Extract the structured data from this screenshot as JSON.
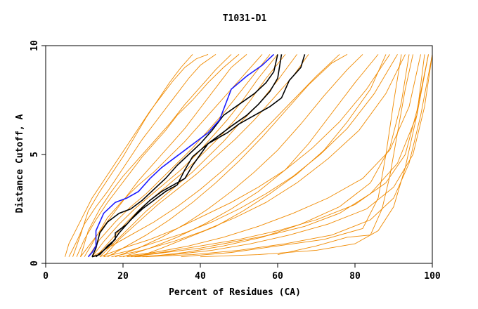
{
  "chart_data": {
    "type": "line",
    "title": "T1031-D1",
    "xlabel": "Percent of Residues (CA)",
    "ylabel": "Distance Cutoff, A",
    "xlim": [
      0,
      100
    ],
    "ylim": [
      0,
      10
    ],
    "xticks": [
      0,
      20,
      40,
      60,
      80,
      100
    ],
    "xtick_labels": [
      "0",
      "20",
      "40",
      "60",
      "80",
      "100"
    ],
    "yticks": [
      0,
      5,
      10
    ],
    "ytick_labels": [
      "0",
      "5",
      "10"
    ],
    "grid": false,
    "legend": "none",
    "colors": {
      "background_models": "#f08a00",
      "black_models": "#000000",
      "highlight_model": "#1a1aff",
      "axes": "#000000"
    },
    "background_series": [
      {
        "x": [
          5,
          6,
          8,
          10,
          12,
          15,
          18,
          21,
          24,
          27,
          30,
          33,
          36,
          39,
          42
        ],
        "y": [
          0.3,
          0.9,
          1.6,
          2.3,
          3.0,
          3.8,
          4.6,
          5.4,
          6.2,
          7.0,
          7.7,
          8.4,
          9.0,
          9.4,
          9.6
        ]
      },
      {
        "x": [
          6,
          8,
          10,
          13,
          16,
          19,
          22,
          25,
          28,
          31,
          34,
          37,
          40,
          44
        ],
        "y": [
          0.3,
          1.0,
          1.8,
          2.6,
          3.3,
          4.1,
          4.9,
          5.7,
          6.4,
          7.1,
          7.8,
          8.5,
          9.1,
          9.6
        ]
      },
      {
        "x": [
          8,
          10,
          13,
          16,
          19,
          22,
          25,
          28,
          31,
          34,
          38,
          42,
          46,
          50
        ],
        "y": [
          0.3,
          1.1,
          2.0,
          2.8,
          3.5,
          4.2,
          4.9,
          5.5,
          6.1,
          6.8,
          7.5,
          8.3,
          9.0,
          9.6
        ]
      },
      {
        "x": [
          9,
          12,
          15,
          18,
          21,
          24,
          27,
          30,
          33,
          36,
          39,
          42,
          45,
          48,
          52
        ],
        "y": [
          0.3,
          1.0,
          1.7,
          2.4,
          3.1,
          3.8,
          4.4,
          5.0,
          5.6,
          6.2,
          6.9,
          7.6,
          8.3,
          9.0,
          9.6
        ]
      },
      {
        "x": [
          10,
          13,
          16,
          20,
          24,
          28,
          32,
          36,
          40,
          44,
          48,
          52,
          56
        ],
        "y": [
          0.3,
          1.2,
          2.1,
          2.9,
          3.6,
          4.2,
          4.9,
          5.6,
          6.4,
          7.2,
          8.0,
          8.8,
          9.6
        ]
      },
      {
        "x": [
          11,
          14,
          18,
          22,
          26,
          30,
          34,
          38,
          42,
          46,
          50,
          54,
          58
        ],
        "y": [
          0.3,
          1.1,
          1.9,
          2.6,
          3.2,
          3.9,
          4.6,
          5.3,
          6.1,
          6.9,
          7.8,
          8.7,
          9.6
        ]
      },
      {
        "x": [
          12,
          15,
          19,
          23,
          27,
          31,
          35,
          39,
          43,
          47,
          51,
          55,
          60
        ],
        "y": [
          0.3,
          1.0,
          1.8,
          2.5,
          3.1,
          3.7,
          4.3,
          5.0,
          5.8,
          6.6,
          7.5,
          8.5,
          9.6
        ]
      },
      {
        "x": [
          13,
          17,
          21,
          25,
          29,
          33,
          37,
          41,
          45,
          49,
          53,
          57,
          62
        ],
        "y": [
          0.3,
          1.1,
          1.9,
          2.6,
          3.2,
          3.8,
          4.4,
          5.1,
          5.8,
          6.6,
          7.5,
          8.5,
          9.6
        ]
      },
      {
        "x": [
          14,
          18,
          22,
          26,
          30,
          34,
          38,
          42,
          46,
          50,
          55,
          60,
          65
        ],
        "y": [
          0.3,
          1.0,
          1.7,
          2.4,
          3.0,
          3.6,
          4.2,
          4.9,
          5.6,
          6.4,
          7.3,
          8.4,
          9.6
        ]
      },
      {
        "x": [
          15,
          19,
          24,
          29,
          34,
          39,
          44,
          49,
          54,
          59,
          64,
          68
        ],
        "y": [
          0.3,
          1.1,
          1.9,
          2.7,
          3.4,
          4.1,
          4.9,
          5.7,
          6.6,
          7.6,
          8.6,
          9.6
        ]
      },
      {
        "x": [
          7,
          9,
          11,
          14,
          17,
          20,
          23,
          26,
          29,
          32,
          35,
          38
        ],
        "y": [
          0.3,
          1.3,
          2.4,
          3.3,
          4.1,
          4.9,
          5.8,
          6.7,
          7.5,
          8.3,
          9.0,
          9.6
        ]
      },
      {
        "x": [
          9,
          11,
          14,
          17,
          20,
          24,
          28,
          32,
          36,
          40,
          44,
          48
        ],
        "y": [
          0.3,
          1.5,
          2.5,
          3.3,
          4.0,
          4.8,
          5.6,
          6.4,
          7.3,
          8.1,
          8.9,
          9.6
        ]
      },
      {
        "x": [
          16,
          21,
          26,
          32,
          38,
          44,
          50,
          56,
          62,
          68,
          74,
          78
        ],
        "y": [
          0.3,
          0.8,
          1.3,
          2.0,
          2.8,
          3.7,
          4.7,
          5.8,
          7.0,
          8.2,
          9.2,
          9.6
        ]
      },
      {
        "x": [
          18,
          24,
          30,
          36,
          42,
          48,
          54,
          60,
          66,
          72,
          78,
          82
        ],
        "y": [
          0.3,
          0.7,
          1.2,
          1.8,
          2.5,
          3.3,
          4.2,
          5.2,
          6.4,
          7.7,
          8.9,
          9.6
        ]
      },
      {
        "x": [
          20,
          27,
          34,
          41,
          48,
          55,
          62,
          68,
          74,
          80,
          86
        ],
        "y": [
          0.3,
          0.7,
          1.2,
          1.8,
          2.5,
          3.3,
          4.3,
          5.5,
          6.9,
          8.3,
          9.6
        ]
      },
      {
        "x": [
          17,
          25,
          33,
          41,
          49,
          57,
          65,
          73,
          81,
          88,
          93
        ],
        "y": [
          0.3,
          0.6,
          1.0,
          1.5,
          2.1,
          2.8,
          3.7,
          4.8,
          6.1,
          7.8,
          9.6
        ]
      },
      {
        "x": [
          19,
          28,
          37,
          46,
          55,
          64,
          73,
          82,
          89,
          94,
          97
        ],
        "y": [
          0.3,
          0.5,
          0.8,
          1.2,
          1.7,
          2.3,
          3.0,
          3.9,
          5.2,
          7.2,
          9.6
        ]
      },
      {
        "x": [
          21,
          30,
          40,
          50,
          60,
          70,
          80,
          88,
          93,
          96,
          99
        ],
        "y": [
          0.3,
          0.5,
          0.8,
          1.1,
          1.5,
          2.0,
          2.7,
          3.7,
          5.0,
          7.0,
          9.6
        ]
      },
      {
        "x": [
          23,
          33,
          43,
          53,
          63,
          73,
          83,
          90,
          95,
          98,
          100
        ],
        "y": [
          0.3,
          0.4,
          0.6,
          0.9,
          1.3,
          1.8,
          2.5,
          3.5,
          5.0,
          7.2,
          9.6
        ]
      },
      {
        "x": [
          15,
          22,
          29,
          36,
          43,
          50,
          57,
          64,
          71,
          78,
          85,
          91
        ],
        "y": [
          0.3,
          0.6,
          1.0,
          1.4,
          1.9,
          2.5,
          3.2,
          4.0,
          5.0,
          6.2,
          7.8,
          9.6
        ]
      },
      {
        "x": [
          14,
          20,
          27,
          34,
          41,
          48,
          55,
          62,
          69,
          76,
          83,
          89
        ],
        "y": [
          0.3,
          0.7,
          1.1,
          1.6,
          2.2,
          2.8,
          3.5,
          4.3,
          5.3,
          6.5,
          8.0,
          9.6
        ]
      },
      {
        "x": [
          22,
          31,
          40,
          49,
          58,
          67,
          76,
          84,
          91,
          96,
          99
        ],
        "y": [
          0.3,
          0.5,
          0.7,
          1.0,
          1.3,
          1.7,
          2.3,
          3.2,
          4.6,
          6.8,
          9.6
        ]
      },
      {
        "x": [
          25,
          38,
          50,
          62,
          74,
          84,
          90,
          94,
          97,
          100
        ],
        "y": [
          0.3,
          0.4,
          0.6,
          0.9,
          1.3,
          2.0,
          3.0,
          4.6,
          6.8,
          9.6
        ]
      },
      {
        "x": [
          40,
          55,
          70,
          80,
          86,
          90,
          93,
          96,
          98
        ],
        "y": [
          0.3,
          0.4,
          0.6,
          0.9,
          1.5,
          2.6,
          4.4,
          6.8,
          9.6
        ]
      },
      {
        "x": [
          60,
          70,
          78,
          84,
          87,
          89,
          91,
          93,
          95
        ],
        "y": [
          0.4,
          0.8,
          1.2,
          1.3,
          2.5,
          4.0,
          6.0,
          8.0,
          9.6
        ]
      },
      {
        "x": [
          35,
          48,
          60,
          72,
          82,
          86,
          88,
          90,
          92
        ],
        "y": [
          0.3,
          0.5,
          0.8,
          1.1,
          1.6,
          3.0,
          5.0,
          7.4,
          9.6
        ]
      },
      {
        "x": [
          12,
          17,
          22,
          28,
          34,
          40,
          46,
          52,
          58,
          64,
          70,
          76
        ],
        "y": [
          0.3,
          0.8,
          1.3,
          1.9,
          2.6,
          3.4,
          4.3,
          5.3,
          6.4,
          7.5,
          8.6,
          9.6
        ]
      },
      {
        "x": [
          24,
          30,
          37,
          44,
          51,
          58,
          65,
          72,
          78,
          84,
          88
        ],
        "y": [
          0.3,
          0.7,
          1.2,
          1.7,
          2.4,
          3.2,
          4.1,
          5.2,
          6.5,
          8.0,
          9.6
        ]
      },
      {
        "x": [
          26,
          36,
          46,
          56,
          66,
          76,
          84,
          89,
          92,
          94
        ],
        "y": [
          0.3,
          0.5,
          0.8,
          1.2,
          1.8,
          2.6,
          3.7,
          5.3,
          7.4,
          9.6
        ]
      }
    ],
    "series": [
      {
        "x": [
          11,
          12,
          13,
          13,
          15,
          18,
          21,
          24,
          27,
          30,
          33,
          36,
          39,
          42,
          45,
          48,
          52,
          56,
          59
        ],
        "y": [
          0.3,
          0.5,
          0.8,
          1.5,
          2.3,
          2.8,
          3.0,
          3.3,
          3.9,
          4.4,
          4.8,
          5.2,
          5.6,
          6.0,
          6.6,
          8.0,
          8.6,
          9.1,
          9.6
        ],
        "color": "#1a1aff"
      },
      {
        "x": [
          12,
          13,
          14,
          16,
          19,
          22,
          25,
          28,
          31,
          34,
          37,
          40,
          43,
          46,
          50,
          54,
          57,
          59,
          60
        ],
        "y": [
          0.3,
          0.7,
          1.4,
          1.9,
          2.3,
          2.5,
          2.9,
          3.4,
          3.9,
          4.5,
          5.0,
          5.5,
          6.1,
          6.8,
          7.3,
          7.8,
          8.3,
          8.8,
          9.6
        ],
        "color": "#000000"
      },
      {
        "x": [
          12,
          14,
          16,
          18,
          18,
          21,
          24,
          27,
          30,
          33,
          36,
          38,
          40,
          42,
          45,
          48,
          52,
          55,
          58,
          60,
          61
        ],
        "y": [
          0.3,
          0.4,
          0.8,
          1.1,
          1.4,
          1.8,
          2.4,
          2.9,
          3.3,
          3.6,
          3.9,
          4.5,
          5.0,
          5.5,
          5.9,
          6.3,
          6.8,
          7.3,
          7.9,
          8.5,
          9.6
        ],
        "color": "#000000"
      },
      {
        "x": [
          13,
          15,
          17,
          19,
          22,
          25,
          28,
          31,
          34,
          36,
          38,
          40,
          42,
          44,
          47,
          50,
          54,
          58,
          61,
          63,
          65,
          66,
          67
        ],
        "y": [
          0.3,
          0.6,
          0.9,
          1.4,
          2.0,
          2.5,
          2.9,
          3.3,
          3.6,
          4.3,
          4.9,
          5.2,
          5.5,
          5.7,
          6.0,
          6.4,
          6.8,
          7.2,
          7.6,
          8.4,
          8.8,
          9.0,
          9.6
        ],
        "color": "#000000"
      }
    ]
  }
}
